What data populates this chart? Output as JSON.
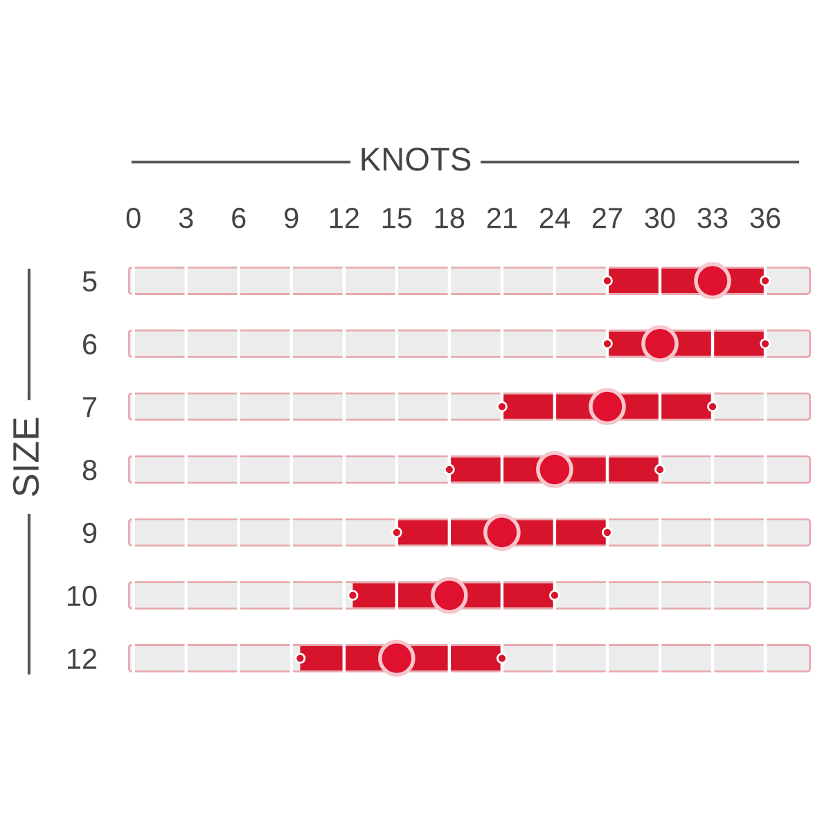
{
  "chart_data": {
    "type": "bar",
    "orientation": "horizontal",
    "title": "KNOTS",
    "ylabel": "SIZE",
    "categories": [
      "5",
      "6",
      "7",
      "8",
      "9",
      "10",
      "12"
    ],
    "series": [
      {
        "color": "#d7142b",
        "base": [
          27,
          27,
          21,
          18,
          15,
          12.5,
          9.5
        ],
        "values": [
          9,
          9,
          12,
          12,
          12,
          11.5,
          11.5
        ]
      },
      {
        "type": "scatter",
        "color": "#d7142b",
        "x": [
          "5",
          "6",
          "7",
          "8",
          "9",
          "10",
          "12"
        ],
        "values": [
          27,
          27,
          21,
          18,
          15,
          12.5,
          9.5
        ]
      },
      {
        "type": "scatter",
        "color": "#d7142b",
        "x": [
          "5",
          "6",
          "7",
          "8",
          "9",
          "10",
          "12"
        ],
        "values": [
          36,
          36,
          33,
          30,
          27,
          24,
          21
        ]
      },
      {
        "type": "scatter",
        "color": "#e0102f",
        "x": [
          "5",
          "6",
          "7",
          "8",
          "9",
          "10",
          "12"
        ],
        "values": [
          33,
          30,
          27,
          24,
          21,
          18,
          15
        ]
      }
    ],
    "xlim": [
      -0.5,
      38.8
    ],
    "xticks": [
      0,
      3,
      6,
      9,
      12,
      15,
      18,
      21,
      24,
      27,
      30,
      33,
      36
    ],
    "grid": "x",
    "marker": "circle"
  }
}
